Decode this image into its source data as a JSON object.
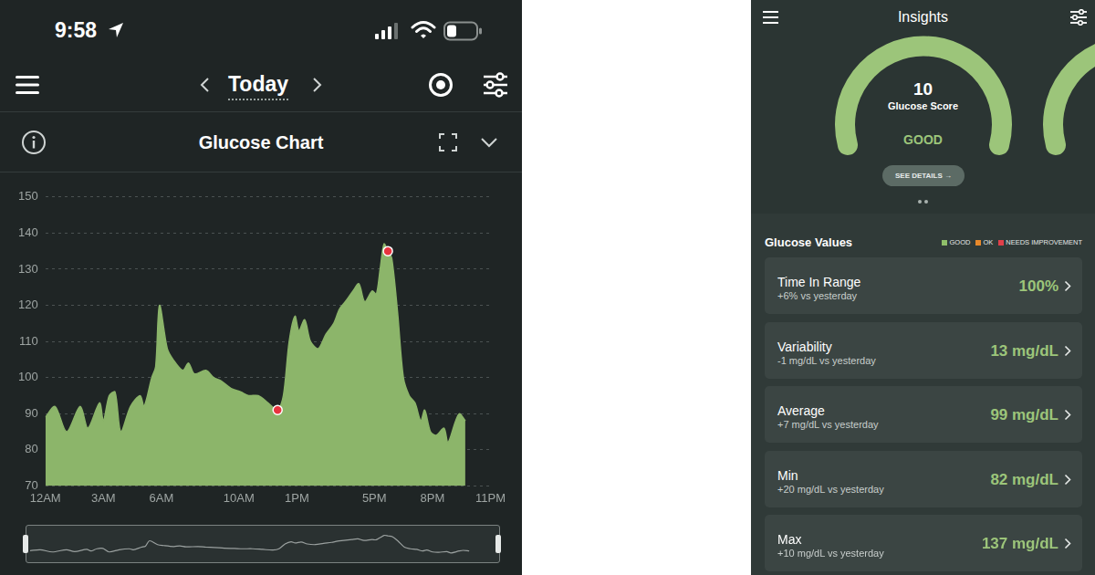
{
  "status_bar": {
    "time": "9:58"
  },
  "date_nav": {
    "label": "Today"
  },
  "chart_panel": {
    "title": "Glucose Chart"
  },
  "chart_data": {
    "type": "line",
    "xlim": [
      0,
      23
    ],
    "xticks": [
      {
        "value": 0,
        "label": "12AM"
      },
      {
        "value": 3,
        "label": "3AM"
      },
      {
        "value": 6,
        "label": "6AM"
      },
      {
        "value": 10,
        "label": "10AM"
      },
      {
        "value": 13,
        "label": "1PM"
      },
      {
        "value": 17,
        "label": "5PM"
      },
      {
        "value": 20,
        "label": "8PM"
      },
      {
        "value": 23,
        "label": "11PM"
      }
    ],
    "ylim": [
      70,
      150
    ],
    "yticks": [
      70,
      80,
      90,
      100,
      110,
      120,
      130,
      140,
      150
    ],
    "grid": "y",
    "series": [
      {
        "type": "area",
        "color": "#8cb56a",
        "x": [
          0,
          0.5,
          1.1,
          1.8,
          2.2,
          2.8,
          3.0,
          3.3,
          3.6,
          3.9,
          4.4,
          4.9,
          5.1,
          5.5,
          5.7,
          5.9,
          6.3,
          6.6,
          7.1,
          7.4,
          7.7,
          8.3,
          8.7,
          9.1,
          9.6,
          10.1,
          10.5,
          11.0,
          11.5,
          12.0,
          12.3,
          12.6,
          12.9,
          13.1,
          13.4,
          13.7,
          14.1,
          14.5,
          14.9,
          15.2,
          15.5,
          15.9,
          16.2,
          16.5,
          16.9,
          17.1,
          17.3,
          17.5,
          17.7,
          17.9,
          18.2,
          18.5,
          18.8,
          19.1,
          19.4,
          19.6,
          19.9,
          20.2,
          20.6,
          20.8,
          21.2,
          21.4,
          21.7
        ],
        "values": [
          89,
          92,
          85,
          92,
          86,
          93,
          88,
          95,
          96,
          85,
          92,
          95,
          92,
          100,
          103,
          120,
          108,
          105,
          102,
          104,
          101,
          102,
          100,
          99,
          97,
          96,
          95,
          95,
          93,
          91,
          95,
          110,
          117,
          113,
          116,
          110,
          108,
          112,
          115,
          119,
          121,
          124,
          126,
          121,
          124,
          123,
          130,
          137,
          135,
          133,
          118,
          100,
          95,
          93,
          88,
          91,
          85,
          84,
          86,
          82,
          88,
          90,
          88
        ]
      },
      {
        "type": "scatter",
        "color": "#e8343f",
        "marker": "circle",
        "x": [
          12.0,
          17.7
        ],
        "values": [
          91,
          135
        ]
      }
    ]
  },
  "insights": {
    "title": "Insights",
    "score": {
      "value": "10",
      "label": "Glucose Score",
      "rating": "GOOD",
      "button": "SEE DETAILS →"
    },
    "values_title": "Glucose Values",
    "legend": [
      {
        "label": "GOOD",
        "color": "#8fbf6a"
      },
      {
        "label": "OK",
        "color": "#e8892b"
      },
      {
        "label": "NEEDS IMPROVEMENT",
        "color": "#e0404a"
      }
    ],
    "rows": [
      {
        "label": "Time In Range",
        "change": "+6% vs yesterday",
        "value": "100%"
      },
      {
        "label": "Variability",
        "change": "-1 mg/dL vs yesterday",
        "value": "13 mg/dL"
      },
      {
        "label": "Average",
        "change": "+7 mg/dL vs yesterday",
        "value": "99 mg/dL"
      },
      {
        "label": "Min",
        "change": "+20 mg/dL vs yesterday",
        "value": "82 mg/dL"
      },
      {
        "label": "Max",
        "change": "+10 mg/dL vs yesterday",
        "value": "137 mg/dL"
      }
    ]
  }
}
